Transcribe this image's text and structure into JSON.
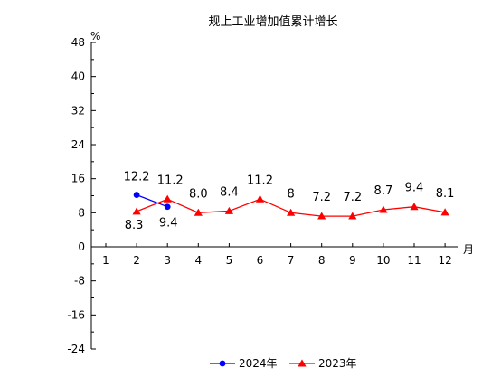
{
  "chart_data": {
    "type": "line",
    "title": "规上工业增加值累计增长",
    "ylabel": "%",
    "xlabel": "月",
    "ylim": [
      -24,
      48
    ],
    "yticks": [
      48,
      40,
      32,
      24,
      16,
      8,
      0,
      -8,
      -16,
      -24
    ],
    "categories": [
      "1",
      "2",
      "3",
      "4",
      "5",
      "6",
      "7",
      "8",
      "9",
      "10",
      "11",
      "12"
    ],
    "grid": false,
    "legend_position": "bottom",
    "series": [
      {
        "name": "2024年",
        "color": "#0000ff",
        "marker": "circle",
        "x": [
          2,
          3
        ],
        "values": [
          12.2,
          9.4
        ],
        "labels": [
          "12.2",
          "9.4"
        ]
      },
      {
        "name": "2023年",
        "color": "#ff0000",
        "marker": "triangle",
        "x": [
          2,
          3,
          4,
          5,
          6,
          7,
          8,
          9,
          10,
          11,
          12
        ],
        "values": [
          8.3,
          11.2,
          8.0,
          8.4,
          11.2,
          8,
          7.2,
          7.2,
          8.7,
          9.4,
          8.1
        ],
        "labels": [
          "8.3",
          "11.2",
          "8.0",
          "8.4",
          "11.2",
          "8",
          "7.2",
          "7.2",
          "8.7",
          "9.4",
          "8.1"
        ]
      }
    ]
  }
}
